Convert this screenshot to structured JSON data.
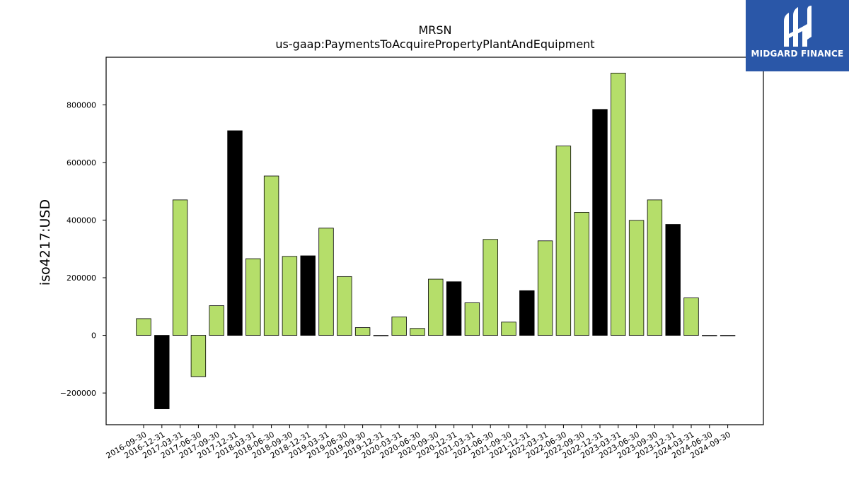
{
  "chart_data": {
    "type": "bar",
    "title": "MRSN",
    "subtitle": "us-gaap:PaymentsToAcquirePropertyPlantAndEquipment",
    "xlabel": "",
    "ylabel": "iso4217:USD",
    "ylim": [
      -310000,
      965000
    ],
    "yticks": [
      -200000,
      0,
      200000,
      400000,
      600000,
      800000
    ],
    "ytick_labels": [
      "−200000",
      "0",
      "200000",
      "400000",
      "600000",
      "800000"
    ],
    "grid": false,
    "legend": "none",
    "colors": {
      "quarter": "#b5de6a",
      "year_end": "#000000",
      "edge": "#000000"
    },
    "categories": [
      "2016-09-30",
      "2016-12-31",
      "2017-03-31",
      "2017-06-30",
      "2017-09-30",
      "2017-12-31",
      "2018-03-31",
      "2018-06-30",
      "2018-09-30",
      "2018-12-31",
      "2019-03-31",
      "2019-06-30",
      "2019-09-30",
      "2019-12-31",
      "2020-03-31",
      "2020-06-30",
      "2020-09-30",
      "2020-12-31",
      "2021-03-31",
      "2021-06-30",
      "2021-09-30",
      "2021-12-31",
      "2022-03-31",
      "2022-06-30",
      "2022-09-30",
      "2022-12-31",
      "2023-03-31",
      "2023-06-30",
      "2023-09-30",
      "2023-12-31",
      "2024-03-31",
      "2024-06-30",
      "2024-09-30"
    ],
    "values": [
      58000,
      -255000,
      470000,
      -143000,
      103000,
      710000,
      266000,
      553000,
      274000,
      276000,
      372000,
      204000,
      27000,
      0,
      64000,
      24000,
      195000,
      186000,
      113000,
      333000,
      46000,
      155000,
      328000,
      657000,
      427000,
      784000,
      910000,
      399000,
      470000,
      385000,
      130000,
      0,
      0
    ]
  },
  "logo": {
    "name": "MIDGARD FINANCE",
    "icon": "midgard-logo-icon"
  }
}
